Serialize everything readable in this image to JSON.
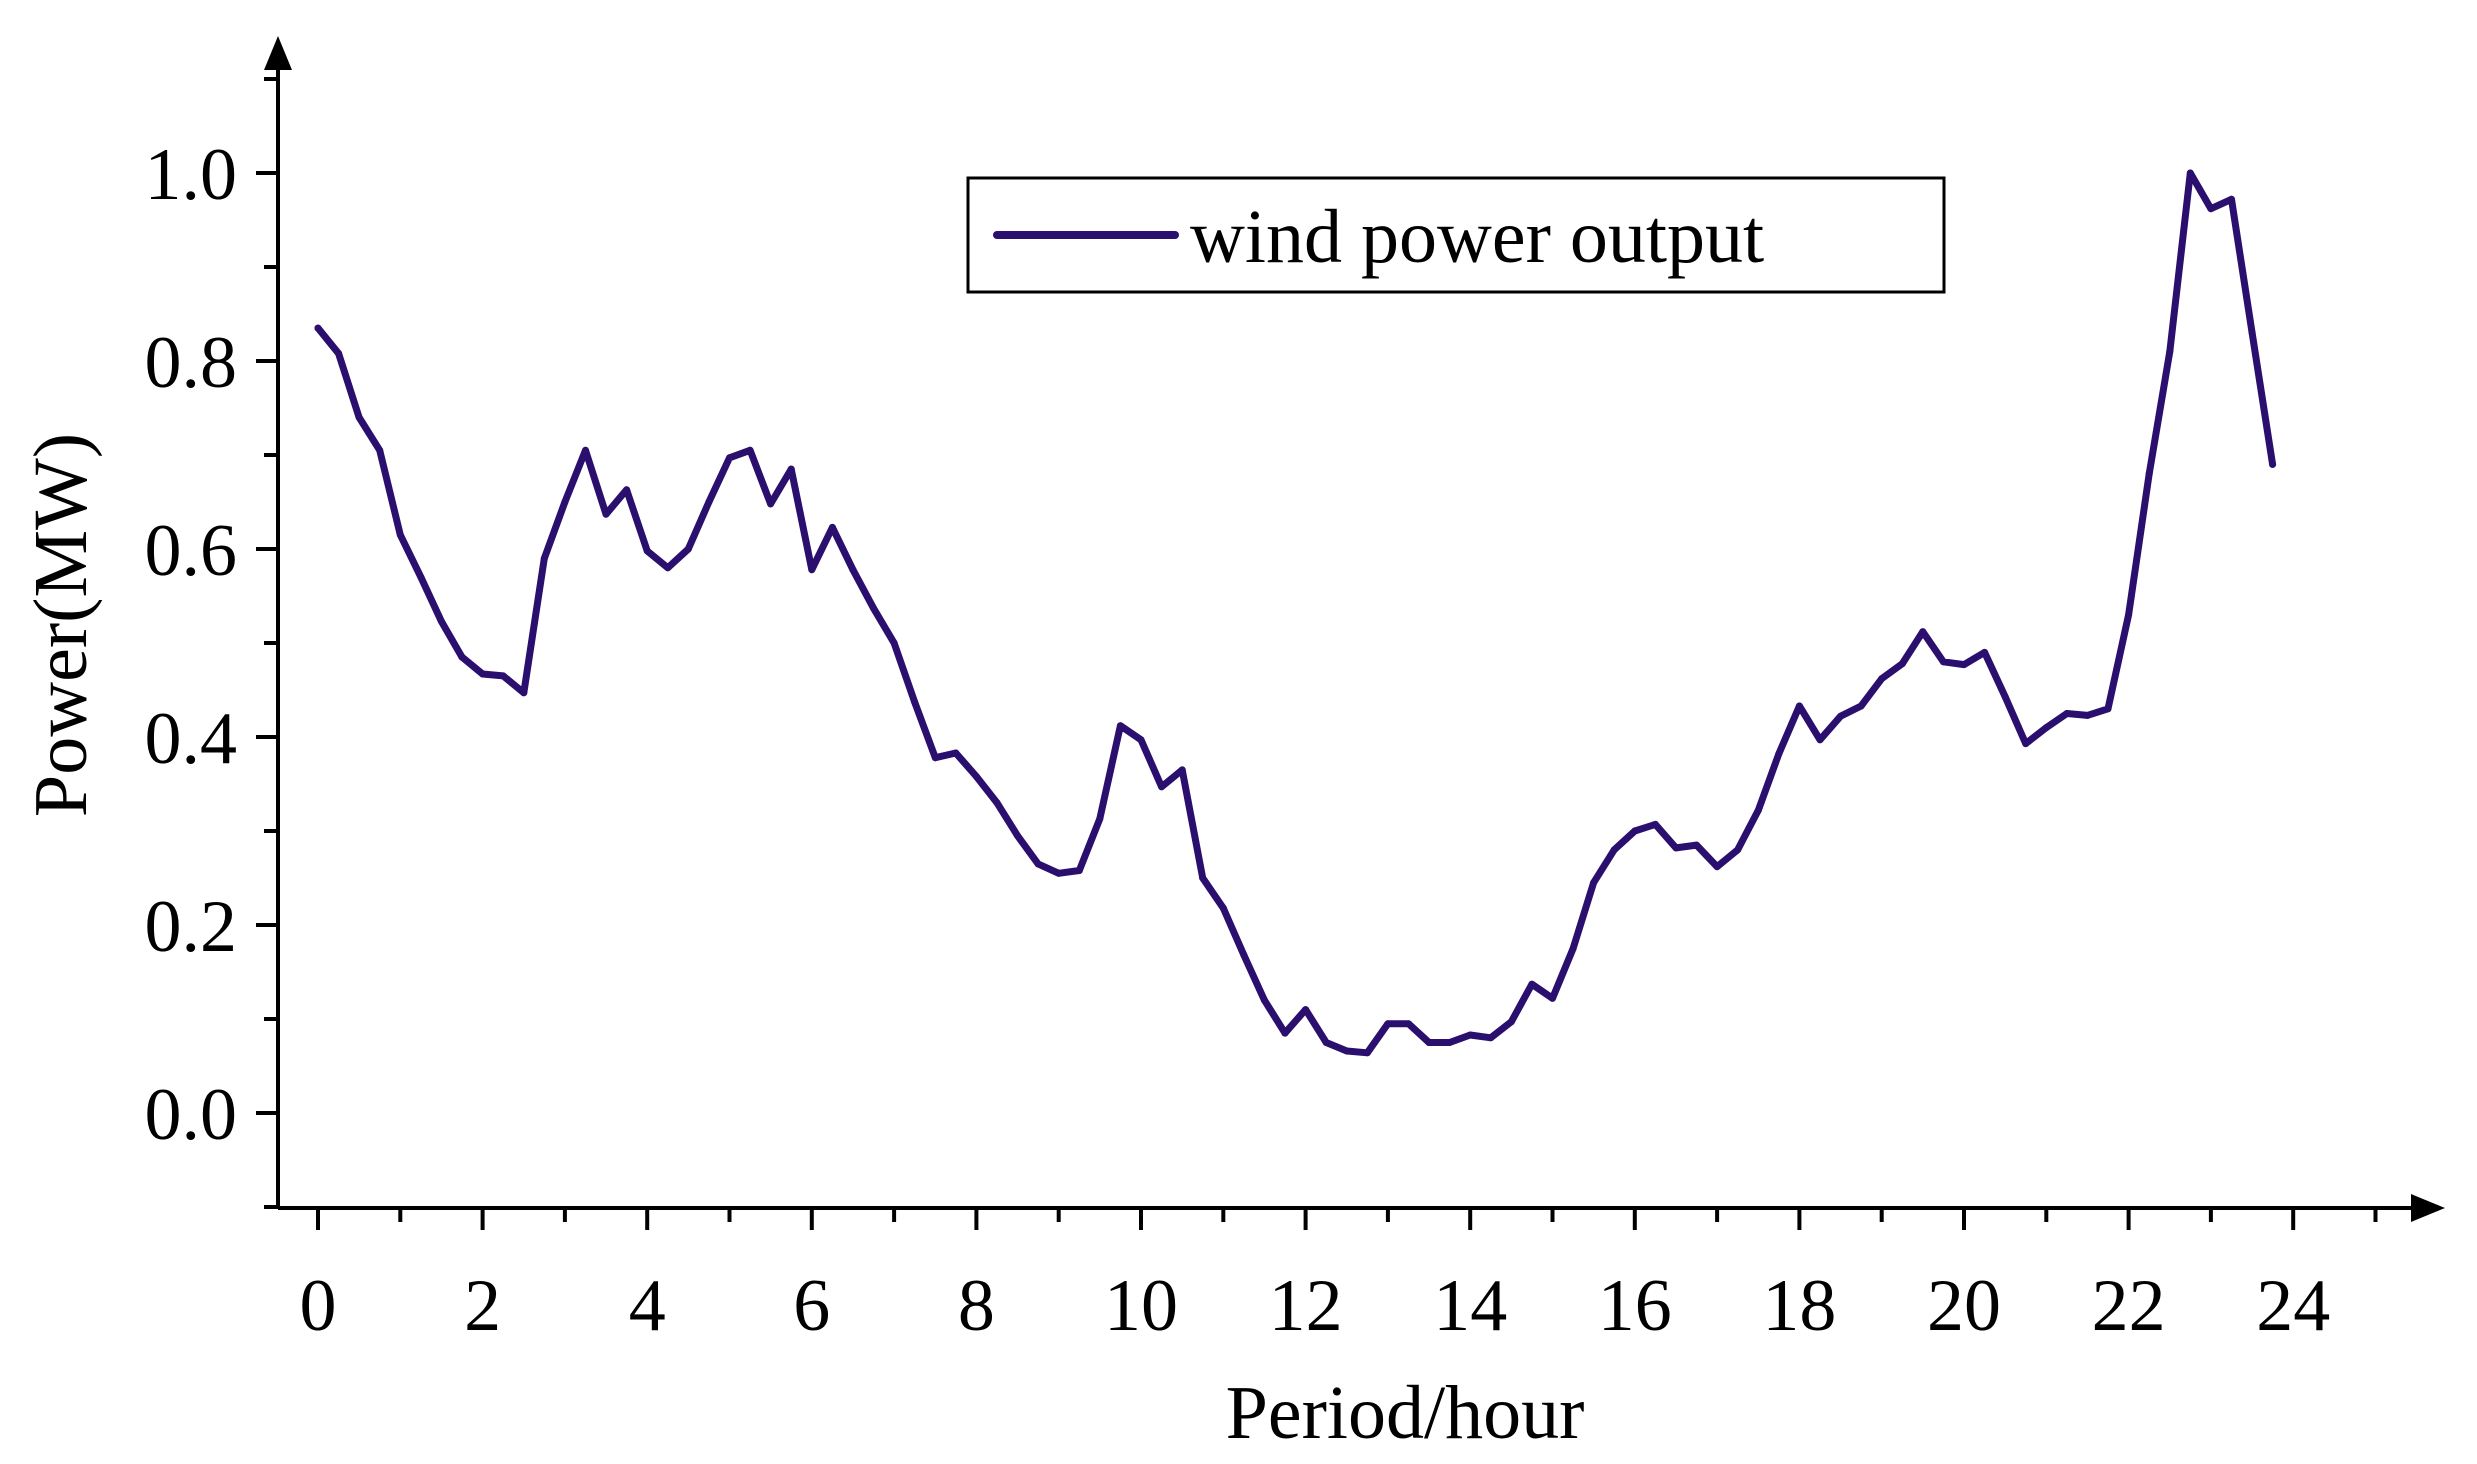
{
  "chart_data": {
    "type": "line",
    "xlabel": "Period/hour",
    "ylabel": "Power(MW)",
    "xlim": [
      -0.5,
      25.5
    ],
    "ylim": [
      -0.1,
      1.15
    ],
    "x_ticks": [
      "0",
      "2",
      "4",
      "6",
      "8",
      "10",
      "12",
      "14",
      "16",
      "18",
      "20",
      "22",
      "24"
    ],
    "y_ticks": [
      "0.0",
      "0.2",
      "0.4",
      "0.6",
      "0.8",
      "1.0"
    ],
    "grid": false,
    "legend_position": "top-right",
    "line_color": "#2a0f6e",
    "series": [
      {
        "name": "wind power output",
        "x": [
          0,
          0.25,
          0.5,
          0.75,
          1,
          1.25,
          1.5,
          1.75,
          2,
          2.25,
          2.5,
          2.75,
          3,
          3.25,
          3.5,
          3.75,
          4,
          4.25,
          4.5,
          4.75,
          5,
          5.25,
          5.5,
          5.75,
          6,
          6.25,
          6.5,
          6.75,
          7,
          7.25,
          7.5,
          7.75,
          8,
          8.25,
          8.5,
          8.75,
          9,
          9.25,
          9.5,
          9.75,
          10,
          10.25,
          10.5,
          10.75,
          11,
          11.25,
          11.5,
          11.75,
          12,
          12.25,
          12.5,
          12.75,
          13,
          13.25,
          13.5,
          13.75,
          14,
          14.25,
          14.5,
          14.75,
          15,
          15.25,
          15.5,
          15.75,
          16,
          16.25,
          16.5,
          16.75,
          17,
          17.25,
          17.5,
          17.75,
          18,
          18.25,
          18.5,
          18.75,
          19,
          19.25,
          19.5,
          19.75,
          20,
          20.25,
          20.5,
          20.75,
          21,
          21.25,
          21.5,
          21.75,
          22,
          22.25,
          22.5,
          22.75,
          23,
          23.25,
          23.5,
          23.75
        ],
        "values": [
          0.835,
          0.808,
          0.74,
          0.705,
          0.615,
          0.57,
          0.523,
          0.485,
          0.467,
          0.465,
          0.447,
          0.59,
          0.65,
          0.705,
          0.637,
          0.663,
          0.598,
          0.58,
          0.6,
          0.65,
          0.697,
          0.705,
          0.648,
          0.685,
          0.578,
          0.623,
          0.578,
          0.537,
          0.5,
          0.437,
          0.378,
          0.383,
          0.358,
          0.33,
          0.295,
          0.265,
          0.255,
          0.258,
          0.313,
          0.412,
          0.397,
          0.347,
          0.365,
          0.25,
          0.218,
          0.168,
          0.12,
          0.085,
          0.11,
          0.075,
          0.066,
          0.064,
          0.095,
          0.095,
          0.075,
          0.075,
          0.083,
          0.08,
          0.097,
          0.137,
          0.122,
          0.175,
          0.245,
          0.28,
          0.3,
          0.307,
          0.282,
          0.285,
          0.262,
          0.28,
          0.322,
          0.382,
          0.433,
          0.397,
          0.422,
          0.433,
          0.462,
          0.478,
          0.512,
          0.48,
          0.477,
          0.49,
          0.443,
          0.393,
          0.41,
          0.425,
          0.423,
          0.43,
          0.53,
          0.68,
          0.81,
          1.0,
          0.962,
          0.972,
          0.83,
          0.69
        ]
      }
    ]
  }
}
